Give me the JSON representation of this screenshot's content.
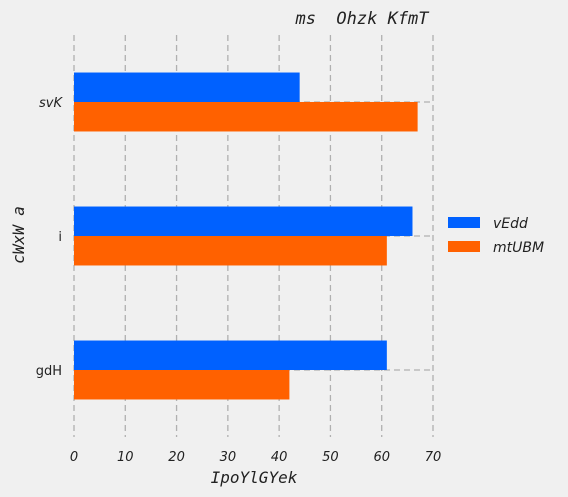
{
  "chart_data": {
    "type": "bar",
    "orientation": "horizontal",
    "title": "ms  Ohzk KfmT",
    "xlabel": "IpoYlGYek",
    "ylabel": "cWxW a",
    "categories": [
      "gdH",
      "i",
      "svK"
    ],
    "category_label_style": [
      "normal",
      "normal",
      "italic"
    ],
    "series": [
      {
        "name": "vEdd",
        "values": [
          61,
          66,
          44
        ],
        "color": "#0061ff"
      },
      {
        "name": "mtUBM",
        "values": [
          42,
          61,
          67
        ],
        "color": "#ff6100"
      }
    ],
    "xlim": [
      0,
      70
    ],
    "xticks": [
      "0",
      "10",
      "20",
      "30",
      "40",
      "50",
      "60",
      "70"
    ],
    "grid": true,
    "legend_position": "right"
  }
}
